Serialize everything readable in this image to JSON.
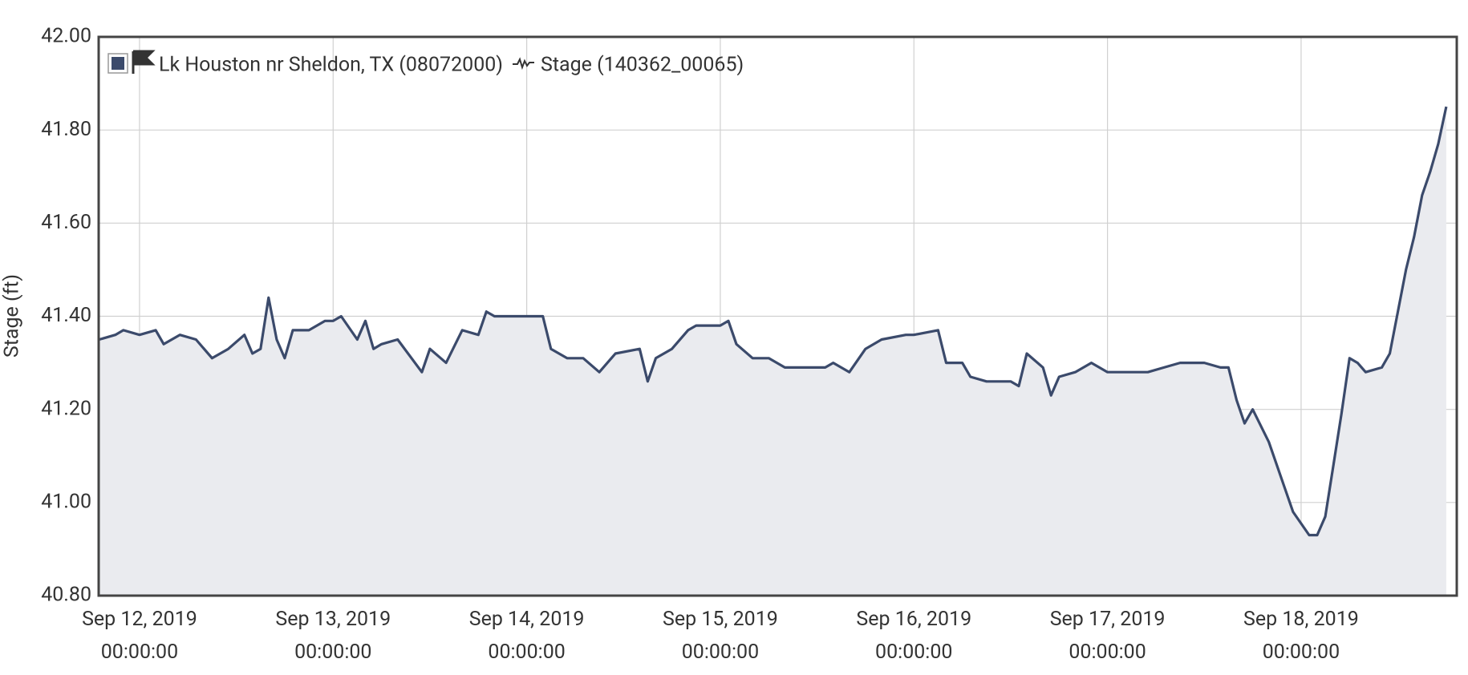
{
  "chart_data": {
    "type": "line",
    "site": "Lk Houston nr Sheldon, TX (08072000)",
    "ylabel": "Stage (ft)",
    "xlim": [
      "2019-09-11T18:56",
      "2019-09-18T19:18"
    ],
    "xticks": [
      {
        "value": "2019-09-12T00:00",
        "label": "Sep 12, 2019 00:00:00"
      },
      {
        "value": "2019-09-13T00:00",
        "label": "Sep 13, 2019 00:00:00"
      },
      {
        "value": "2019-09-14T00:00",
        "label": "Sep 14, 2019 00:00:00"
      },
      {
        "value": "2019-09-15T00:00",
        "label": "Sep 15, 2019 00:00:00"
      },
      {
        "value": "2019-09-16T00:00",
        "label": "Sep 16, 2019 00:00:00"
      },
      {
        "value": "2019-09-17T00:00",
        "label": "Sep 17, 2019 00:00:00"
      },
      {
        "value": "2019-09-18T00:00",
        "label": "Sep 18, 2019 00:00:00"
      }
    ],
    "ylim": [
      40.8,
      42.0
    ],
    "yticks": [
      {
        "value": 40.8,
        "label": "40.80"
      },
      {
        "value": 41.0,
        "label": "41.00"
      },
      {
        "value": 41.2,
        "label": "41.20"
      },
      {
        "value": 41.4,
        "label": "41.40"
      },
      {
        "value": 41.6,
        "label": "41.60"
      },
      {
        "value": 41.8,
        "label": "41.80"
      },
      {
        "value": 42.0,
        "label": "42.00"
      }
    ],
    "grid": true,
    "fill_color": "#eaebef",
    "x": [
      "2019-09-11T19:00",
      "2019-09-11T21:00",
      "2019-09-11T22:00",
      "2019-09-12T00:00",
      "2019-09-12T02:00",
      "2019-09-12T03:00",
      "2019-09-12T05:00",
      "2019-09-12T07:00",
      "2019-09-12T09:00",
      "2019-09-12T11:00",
      "2019-09-12T13:00",
      "2019-09-12T14:00",
      "2019-09-12T15:00",
      "2019-09-12T16:00",
      "2019-09-12T17:00",
      "2019-09-12T18:00",
      "2019-09-12T19:00",
      "2019-09-12T21:00",
      "2019-09-12T23:00",
      "2019-09-13T00:00",
      "2019-09-13T01:00",
      "2019-09-13T03:00",
      "2019-09-13T04:00",
      "2019-09-13T05:00",
      "2019-09-13T06:00",
      "2019-09-13T08:00",
      "2019-09-13T11:00",
      "2019-09-13T12:00",
      "2019-09-13T14:00",
      "2019-09-13T16:00",
      "2019-09-13T18:00",
      "2019-09-13T19:00",
      "2019-09-13T20:00",
      "2019-09-13T22:00",
      "2019-09-14T00:00",
      "2019-09-14T02:00",
      "2019-09-14T03:00",
      "2019-09-14T05:00",
      "2019-09-14T07:00",
      "2019-09-14T09:00",
      "2019-09-14T11:00",
      "2019-09-14T14:00",
      "2019-09-14T15:00",
      "2019-09-14T16:00",
      "2019-09-14T18:00",
      "2019-09-14T20:00",
      "2019-09-14T21:00",
      "2019-09-15T00:00",
      "2019-09-15T01:00",
      "2019-09-15T02:00",
      "2019-09-15T04:00",
      "2019-09-15T06:00",
      "2019-09-15T08:00",
      "2019-09-15T10:00",
      "2019-09-15T13:00",
      "2019-09-15T14:00",
      "2019-09-15T16:00",
      "2019-09-15T18:00",
      "2019-09-15T20:00",
      "2019-09-15T23:00",
      "2019-09-16T00:00",
      "2019-09-16T03:00",
      "2019-09-16T04:00",
      "2019-09-16T06:00",
      "2019-09-16T07:00",
      "2019-09-16T09:00",
      "2019-09-16T12:00",
      "2019-09-16T13:00",
      "2019-09-16T14:00",
      "2019-09-16T16:00",
      "2019-09-16T17:00",
      "2019-09-16T18:00",
      "2019-09-16T20:00",
      "2019-09-16T22:00",
      "2019-09-17T00:00",
      "2019-09-17T02:00",
      "2019-09-17T05:00",
      "2019-09-17T07:00",
      "2019-09-17T09:00",
      "2019-09-17T12:00",
      "2019-09-17T14:00",
      "2019-09-17T15:00",
      "2019-09-17T16:00",
      "2019-09-17T17:00",
      "2019-09-17T18:00",
      "2019-09-17T20:00",
      "2019-09-17T22:00",
      "2019-09-17T23:00",
      "2019-09-18T01:00",
      "2019-09-18T02:00",
      "2019-09-18T03:00",
      "2019-09-18T04:00",
      "2019-09-18T05:00",
      "2019-09-18T06:00",
      "2019-09-18T07:00",
      "2019-09-18T08:00",
      "2019-09-18T10:00",
      "2019-09-18T11:00",
      "2019-09-18T12:00",
      "2019-09-18T13:00",
      "2019-09-18T14:00",
      "2019-09-18T15:00",
      "2019-09-18T16:00",
      "2019-09-18T17:00",
      "2019-09-18T18:00"
    ],
    "series": [
      {
        "name": "Stage (140362_00065)",
        "color": "#3b4a6b",
        "values": [
          41.35,
          41.36,
          41.37,
          41.36,
          41.37,
          41.34,
          41.36,
          41.35,
          41.31,
          41.33,
          41.36,
          41.32,
          41.33,
          41.44,
          41.35,
          41.31,
          41.37,
          41.37,
          41.39,
          41.39,
          41.4,
          41.35,
          41.39,
          41.33,
          41.34,
          41.35,
          41.28,
          41.33,
          41.3,
          41.37,
          41.36,
          41.41,
          41.4,
          41.4,
          41.4,
          41.4,
          41.33,
          41.31,
          41.31,
          41.28,
          41.32,
          41.33,
          41.26,
          41.31,
          41.33,
          41.37,
          41.38,
          41.38,
          41.39,
          41.34,
          41.31,
          41.31,
          41.29,
          41.29,
          41.29,
          41.3,
          41.28,
          41.33,
          41.35,
          41.36,
          41.36,
          41.37,
          41.3,
          41.3,
          41.27,
          41.26,
          41.26,
          41.25,
          41.32,
          41.29,
          41.23,
          41.27,
          41.28,
          41.3,
          41.28,
          41.28,
          41.28,
          41.29,
          41.3,
          41.3,
          41.29,
          41.29,
          41.22,
          41.17,
          41.2,
          41.13,
          41.03,
          40.98,
          40.93,
          40.93,
          40.97,
          41.08,
          41.19,
          41.31,
          41.3,
          41.28,
          41.29,
          41.32,
          41.41,
          41.5,
          41.57,
          41.66,
          41.71,
          41.77,
          41.85
        ]
      }
    ]
  }
}
